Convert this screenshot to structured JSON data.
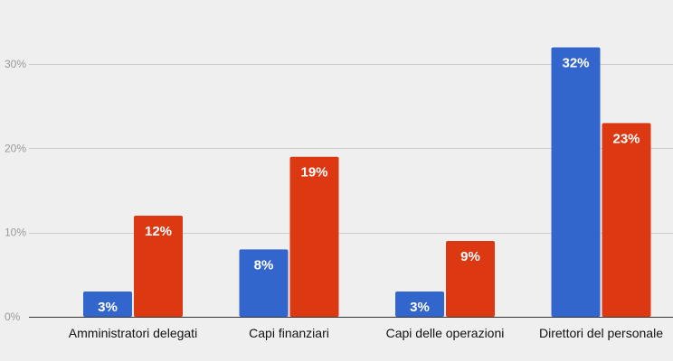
{
  "chart_data": {
    "type": "bar",
    "categories": [
      "Amministratori delegati",
      "Capi finanziari",
      "Capi delle operazioni",
      "Direttori del personale"
    ],
    "series": [
      {
        "values": [
          3,
          8,
          3,
          32
        ],
        "labels": [
          "3%",
          "8%",
          "3%",
          "32%"
        ],
        "color": "#3366cc"
      },
      {
        "values": [
          12,
          19,
          9,
          23
        ],
        "labels": [
          "12%",
          "19%",
          "9%",
          "23%"
        ],
        "color": "#dc3912"
      }
    ],
    "yticks": [
      0,
      10,
      20,
      30
    ],
    "ytick_labels": [
      "0%",
      "10%",
      "20%",
      "30%"
    ],
    "ylim": [
      0,
      34
    ],
    "grid": true,
    "title": "",
    "xlabel": "",
    "ylabel": ""
  }
}
